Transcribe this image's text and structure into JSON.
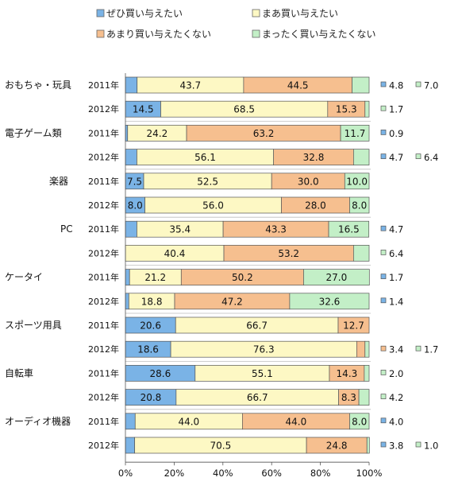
{
  "chart_data": {
    "type": "bar",
    "orientation": "horizontal",
    "stacked": true,
    "percent_axis": true,
    "legend": [
      {
        "name": "ぜひ買い与えたい",
        "color": "#7ab3e6"
      },
      {
        "name": "まあ買い与えたい",
        "color": "#fdf8c4"
      },
      {
        "name": "あまり買い与えたくない",
        "color": "#f6bf8f"
      },
      {
        "name": "まったく買い与えたくない",
        "color": "#c3efc7"
      }
    ],
    "xticks": [
      "0%",
      "20%",
      "40%",
      "60%",
      "80%",
      "100%"
    ],
    "xlim": [
      0,
      100
    ],
    "grid": false,
    "groups": [
      {
        "label": "おもちゃ・玩具",
        "rows": [
          {
            "year": "2011年",
            "values": [
              4.8,
              43.7,
              44.5,
              7.0
            ]
          },
          {
            "year": "2012年",
            "values": [
              14.5,
              68.5,
              15.3,
              1.7
            ]
          }
        ]
      },
      {
        "label": "電子ゲーム類",
        "rows": [
          {
            "year": "2011年",
            "values": [
              0.9,
              24.2,
              63.2,
              11.7
            ]
          },
          {
            "year": "2012年",
            "values": [
              4.7,
              56.1,
              32.8,
              6.4
            ]
          }
        ]
      },
      {
        "label": "楽器",
        "rows": [
          {
            "year": "2011年",
            "values": [
              7.5,
              52.5,
              30.0,
              10.0
            ]
          },
          {
            "year": "2012年",
            "values": [
              8.0,
              56.0,
              28.0,
              8.0
            ]
          }
        ]
      },
      {
        "label": "PC",
        "rows": [
          {
            "year": "2011年",
            "values": [
              4.7,
              35.4,
              43.3,
              16.5
            ]
          },
          {
            "year": "2012年",
            "values": [
              0.0,
              40.4,
              53.2,
              6.4
            ]
          }
        ]
      },
      {
        "label": "ケータイ",
        "rows": [
          {
            "year": "2011年",
            "values": [
              1.7,
              21.2,
              50.2,
              27.0
            ]
          },
          {
            "year": "2012年",
            "values": [
              1.4,
              18.8,
              47.2,
              32.6
            ]
          }
        ]
      },
      {
        "label": "スポーツ用具",
        "rows": [
          {
            "year": "2011年",
            "values": [
              20.6,
              66.7,
              12.7,
              0.0
            ]
          },
          {
            "year": "2012年",
            "values": [
              18.6,
              76.3,
              3.4,
              1.7
            ]
          }
        ]
      },
      {
        "label": "自転車",
        "rows": [
          {
            "year": "2011年",
            "values": [
              28.6,
              55.1,
              14.3,
              2.0
            ]
          },
          {
            "year": "2012年",
            "values": [
              20.8,
              66.7,
              8.3,
              4.2
            ]
          }
        ]
      },
      {
        "label": "オーディオ機器",
        "rows": [
          {
            "year": "2011年",
            "values": [
              4.0,
              44.0,
              44.0,
              8.0
            ]
          },
          {
            "year": "2012年",
            "values": [
              3.8,
              70.5,
              24.8,
              1.0
            ]
          }
        ]
      }
    ],
    "outside_labels": [
      [
        [
          "4.8",
          0
        ],
        [
          "7.0",
          3
        ]
      ],
      [
        [
          "1.7",
          3
        ]
      ],
      [
        [
          "0.9",
          0
        ]
      ],
      [
        [
          "4.7",
          0
        ],
        [
          "6.4",
          3
        ]
      ],
      [],
      [],
      [
        [
          "4.7",
          0
        ]
      ],
      [
        [
          "6.4",
          3
        ]
      ],
      [
        [
          "1.7",
          0
        ]
      ],
      [
        [
          "1.4",
          0
        ]
      ],
      [],
      [
        [
          "3.4",
          2
        ],
        [
          "1.7",
          3
        ]
      ],
      [
        [
          "2.0",
          3
        ]
      ],
      [
        [
          "4.2",
          3
        ]
      ],
      [
        [
          "4.0",
          0
        ]
      ],
      [
        [
          "3.8",
          0
        ],
        [
          "1.0",
          3
        ]
      ]
    ]
  }
}
